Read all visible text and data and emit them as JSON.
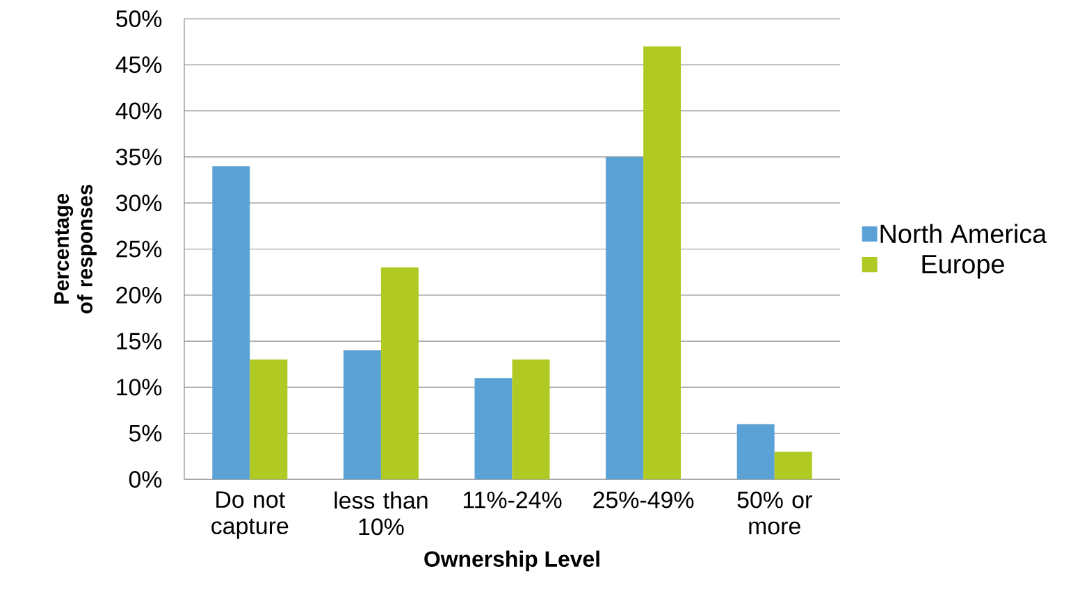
{
  "chart_data": {
    "type": "bar",
    "xlabel": "Ownership Level",
    "ylabel": "Percentage of responses",
    "categories": [
      "Do not capture",
      "less than 10%",
      "11%-24%",
      "25%-49%",
      "50% or more"
    ],
    "series": [
      {
        "name": "North America",
        "color": "#5aa2d5",
        "values": [
          34,
          14,
          11,
          35,
          6
        ]
      },
      {
        "name": "Europe",
        "color": "#b0c923",
        "values": [
          13,
          23,
          13,
          47,
          3
        ]
      }
    ],
    "ylim": [
      0,
      50
    ],
    "yticks": [
      {
        "value": 0,
        "label": "0%"
      },
      {
        "value": 5,
        "label": "5%"
      },
      {
        "value": 10,
        "label": "10%"
      },
      {
        "value": 15,
        "label": "15%"
      },
      {
        "value": 20,
        "label": "20%"
      },
      {
        "value": 25,
        "label": "25%"
      },
      {
        "value": 30,
        "label": "30%"
      },
      {
        "value": 35,
        "label": "35%"
      },
      {
        "value": 40,
        "label": "40%"
      },
      {
        "value": 45,
        "label": "45%"
      },
      {
        "value": 50,
        "label": "50%"
      }
    ],
    "grid": "y",
    "legend": "right"
  }
}
